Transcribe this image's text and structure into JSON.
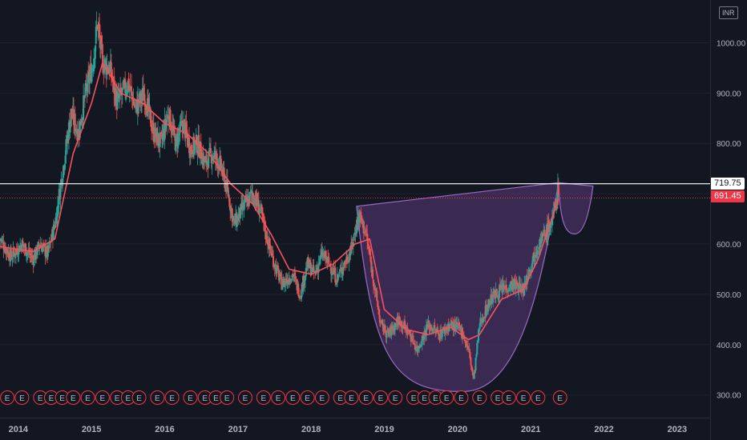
{
  "header": {
    "currency": "INR"
  },
  "price_tags": {
    "resistance": "719.75",
    "last": "691.45"
  },
  "events_label": "E",
  "colors": {
    "background": "#131722",
    "grid": "#1e222d",
    "up": "#26a69a",
    "down": "#ef5350",
    "ma": "#f7525f",
    "pattern_fill": "#5b3a7a",
    "pattern_stroke": "#9c6ac7",
    "resistance_line": "#ffffff",
    "last_price_line": "#f23645",
    "axis_text": "#b2b5be",
    "event_stroke": "#f23645"
  },
  "chart_data": {
    "type": "candlestick",
    "currency": "INR",
    "x_tick_labels": [
      "2014",
      "2015",
      "2016",
      "2017",
      "2018",
      "2019",
      "2020",
      "2021",
      "2022",
      "2023"
    ],
    "y_tick_labels": [
      "300.00",
      "400.00",
      "500.00",
      "600.00",
      "700.00",
      "800.00",
      "900.00",
      "1000.00"
    ],
    "y_ticks": [
      300,
      400,
      500,
      600,
      700,
      800,
      900,
      1000
    ],
    "ylim": [
      255,
      1085
    ],
    "xlim": [
      2013.75,
      2023.45
    ],
    "grid": false,
    "horizontal_lines": [
      {
        "label": "719.75",
        "value": 719.75,
        "style": "solid"
      },
      {
        "label": "691.45",
        "value": 691.45,
        "style": "dotted"
      }
    ],
    "price_path": [
      [
        2013.75,
        610
      ],
      [
        2013.9,
        575
      ],
      [
        2014.05,
        600
      ],
      [
        2014.2,
        570
      ],
      [
        2014.3,
        600
      ],
      [
        2014.4,
        580
      ],
      [
        2014.5,
        640
      ],
      [
        2014.62,
        760
      ],
      [
        2014.72,
        860
      ],
      [
        2014.82,
        820
      ],
      [
        2014.92,
        900
      ],
      [
        2015.02,
        960
      ],
      [
        2015.08,
        1040
      ],
      [
        2015.15,
        960
      ],
      [
        2015.25,
        950
      ],
      [
        2015.35,
        880
      ],
      [
        2015.5,
        920
      ],
      [
        2015.6,
        870
      ],
      [
        2015.72,
        900
      ],
      [
        2015.85,
        820
      ],
      [
        2015.95,
        800
      ],
      [
        2016.05,
        860
      ],
      [
        2016.15,
        800
      ],
      [
        2016.25,
        840
      ],
      [
        2016.35,
        790
      ],
      [
        2016.45,
        800
      ],
      [
        2016.55,
        760
      ],
      [
        2016.65,
        780
      ],
      [
        2016.75,
        760
      ],
      [
        2016.85,
        710
      ],
      [
        2016.95,
        640
      ],
      [
        2017.1,
        680
      ],
      [
        2017.2,
        700
      ],
      [
        2017.3,
        670
      ],
      [
        2017.4,
        610
      ],
      [
        2017.5,
        560
      ],
      [
        2017.6,
        520
      ],
      [
        2017.75,
        540
      ],
      [
        2017.85,
        500
      ],
      [
        2017.95,
        560
      ],
      [
        2018.05,
        540
      ],
      [
        2018.15,
        580
      ],
      [
        2018.25,
        560
      ],
      [
        2018.35,
        530
      ],
      [
        2018.45,
        560
      ],
      [
        2018.55,
        590
      ],
      [
        2018.65,
        660
      ],
      [
        2018.75,
        620
      ],
      [
        2018.85,
        530
      ],
      [
        2018.95,
        440
      ],
      [
        2019.05,
        420
      ],
      [
        2019.2,
        450
      ],
      [
        2019.35,
        420
      ],
      [
        2019.45,
        390
      ],
      [
        2019.6,
        440
      ],
      [
        2019.75,
        420
      ],
      [
        2019.9,
        440
      ],
      [
        2020.05,
        430
      ],
      [
        2020.15,
        390
      ],
      [
        2020.22,
        330
      ],
      [
        2020.3,
        440
      ],
      [
        2020.45,
        490
      ],
      [
        2020.6,
        510
      ],
      [
        2020.75,
        520
      ],
      [
        2020.9,
        510
      ],
      [
        2021.0,
        560
      ],
      [
        2021.1,
        600
      ],
      [
        2021.2,
        620
      ],
      [
        2021.3,
        650
      ],
      [
        2021.38,
        715
      ]
    ],
    "moving_average": [
      [
        2013.75,
        595
      ],
      [
        2014.2,
        585
      ],
      [
        2014.5,
        610
      ],
      [
        2014.75,
        780
      ],
      [
        2015.0,
        880
      ],
      [
        2015.15,
        960
      ],
      [
        2015.4,
        900
      ],
      [
        2015.7,
        880
      ],
      [
        2016.0,
        840
      ],
      [
        2016.3,
        820
      ],
      [
        2016.6,
        780
      ],
      [
        2016.9,
        720
      ],
      [
        2017.2,
        680
      ],
      [
        2017.45,
        620
      ],
      [
        2017.7,
        550
      ],
      [
        2018.0,
        540
      ],
      [
        2018.3,
        560
      ],
      [
        2018.6,
        600
      ],
      [
        2018.8,
        610
      ],
      [
        2019.0,
        470
      ],
      [
        2019.3,
        430
      ],
      [
        2019.6,
        420
      ],
      [
        2019.9,
        435
      ],
      [
        2020.15,
        410
      ],
      [
        2020.3,
        420
      ],
      [
        2020.6,
        490
      ],
      [
        2020.9,
        510
      ],
      [
        2021.1,
        570
      ],
      [
        2021.38,
        690
      ]
    ],
    "cup_and_handle": {
      "rim_left": [
        2018.62,
        675
      ],
      "rim_right": [
        2021.38,
        722
      ],
      "cup_bottom": [
        2020.1,
        307
      ],
      "handle_low": [
        2021.6,
        620
      ],
      "handle_end": [
        2021.85,
        715
      ]
    },
    "earnings_events": [
      2013.85,
      2014.05,
      2014.3,
      2014.45,
      2014.6,
      2014.75,
      2014.95,
      2015.15,
      2015.35,
      2015.5,
      2015.65,
      2015.9,
      2016.1,
      2016.35,
      2016.55,
      2016.7,
      2016.85,
      2017.1,
      2017.35,
      2017.55,
      2017.75,
      2017.95,
      2018.15,
      2018.4,
      2018.55,
      2018.75,
      2018.95,
      2019.15,
      2019.4,
      2019.55,
      2019.7,
      2019.85,
      2020.05,
      2020.3,
      2020.55,
      2020.7,
      2020.9,
      2021.1,
      2021.4
    ]
  }
}
